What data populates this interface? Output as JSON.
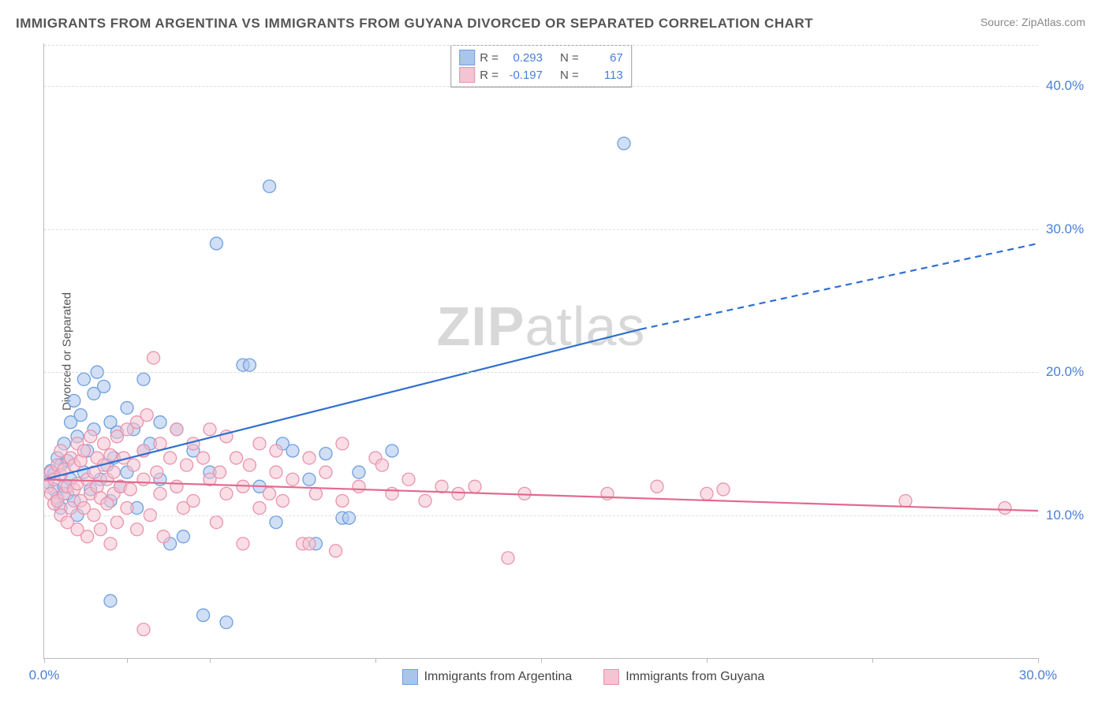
{
  "title": "IMMIGRANTS FROM ARGENTINA VS IMMIGRANTS FROM GUYANA DIVORCED OR SEPARATED CORRELATION CHART",
  "source": "Source: ZipAtlas.com",
  "ylabel": "Divorced or Separated",
  "watermark_bold": "ZIP",
  "watermark_rest": "atlas",
  "chart": {
    "type": "scatter",
    "xlim": [
      0,
      30
    ],
    "ylim": [
      0,
      43
    ],
    "xtick_labels": [
      "0.0%",
      "30.0%"
    ],
    "xtick_positions": [
      0,
      30
    ],
    "xtick_minor": [
      2.5,
      5,
      10,
      15,
      20,
      25
    ],
    "ytick_labels": [
      "10.0%",
      "20.0%",
      "30.0%",
      "40.0%"
    ],
    "ytick_positions": [
      10,
      20,
      30,
      40
    ],
    "grid_color": "#dddddd",
    "axis_color": "#bbbbbb",
    "background_color": "#ffffff",
    "marker_radius": 8,
    "marker_opacity": 0.55,
    "trend_line_width": 2.2
  },
  "series": [
    {
      "name": "Immigrants from Argentina",
      "fill": "#a9c5ec",
      "stroke": "#6f9fde",
      "line_color": "#2e6fd1",
      "r_value": "0.293",
      "n_value": "67",
      "trend": {
        "x1": 0,
        "y1": 12.5,
        "x2_solid": 18,
        "y2_solid": 23,
        "x2": 30,
        "y2": 29
      },
      "points": [
        [
          0.1,
          12.3
        ],
        [
          0.2,
          13.1
        ],
        [
          0.3,
          11.8
        ],
        [
          0.3,
          12.9
        ],
        [
          0.4,
          14.0
        ],
        [
          0.4,
          11.2
        ],
        [
          0.5,
          13.5
        ],
        [
          0.5,
          10.5
        ],
        [
          0.6,
          15.0
        ],
        [
          0.6,
          12.0
        ],
        [
          0.7,
          11.5
        ],
        [
          0.7,
          13.8
        ],
        [
          0.8,
          16.5
        ],
        [
          0.8,
          12.5
        ],
        [
          0.9,
          18.0
        ],
        [
          0.9,
          11.0
        ],
        [
          1.0,
          10.0
        ],
        [
          1.0,
          15.5
        ],
        [
          1.1,
          17.0
        ],
        [
          1.2,
          19.5
        ],
        [
          1.2,
          13.0
        ],
        [
          1.3,
          14.5
        ],
        [
          1.4,
          11.8
        ],
        [
          1.5,
          18.5
        ],
        [
          1.5,
          16.0
        ],
        [
          1.6,
          20.0
        ],
        [
          1.7,
          12.5
        ],
        [
          1.8,
          19.0
        ],
        [
          1.9,
          13.5
        ],
        [
          2.0,
          11.0
        ],
        [
          2.0,
          16.5
        ],
        [
          2.1,
          14.0
        ],
        [
          2.2,
          15.8
        ],
        [
          2.3,
          12.0
        ],
        [
          2.5,
          17.5
        ],
        [
          2.5,
          13.0
        ],
        [
          2.7,
          16.0
        ],
        [
          2.8,
          10.5
        ],
        [
          3.0,
          14.5
        ],
        [
          3.0,
          19.5
        ],
        [
          3.2,
          15.0
        ],
        [
          3.5,
          16.5
        ],
        [
          3.5,
          12.5
        ],
        [
          3.8,
          8.0
        ],
        [
          4.0,
          16.0
        ],
        [
          4.2,
          8.5
        ],
        [
          4.5,
          14.5
        ],
        [
          4.8,
          3.0
        ],
        [
          5.0,
          13.0
        ],
        [
          5.2,
          29.0
        ],
        [
          5.5,
          2.5
        ],
        [
          6.0,
          20.5
        ],
        [
          6.2,
          20.5
        ],
        [
          6.5,
          12.0
        ],
        [
          6.8,
          33.0
        ],
        [
          7.0,
          9.5
        ],
        [
          7.2,
          15.0
        ],
        [
          7.5,
          14.5
        ],
        [
          8.0,
          12.5
        ],
        [
          8.2,
          8.0
        ],
        [
          8.5,
          14.3
        ],
        [
          9.0,
          9.8
        ],
        [
          9.2,
          9.8
        ],
        [
          9.5,
          13.0
        ],
        [
          10.5,
          14.5
        ],
        [
          17.5,
          36.0
        ],
        [
          2.0,
          4.0
        ]
      ]
    },
    {
      "name": "Immigrants from Guyana",
      "fill": "#f5c3d1",
      "stroke": "#e993ad",
      "line_color": "#e26a8f",
      "r_value": "-0.197",
      "n_value": "113",
      "trend": {
        "x1": 0,
        "y1": 12.5,
        "x2_solid": 30,
        "y2_solid": 10.3,
        "x2": 30,
        "y2": 10.3
      },
      "points": [
        [
          0.1,
          12.0
        ],
        [
          0.2,
          11.5
        ],
        [
          0.2,
          13.0
        ],
        [
          0.3,
          10.8
        ],
        [
          0.3,
          12.5
        ],
        [
          0.4,
          11.0
        ],
        [
          0.4,
          13.5
        ],
        [
          0.5,
          14.5
        ],
        [
          0.5,
          10.0
        ],
        [
          0.5,
          12.8
        ],
        [
          0.6,
          11.5
        ],
        [
          0.6,
          13.2
        ],
        [
          0.7,
          9.5
        ],
        [
          0.7,
          12.0
        ],
        [
          0.8,
          14.0
        ],
        [
          0.8,
          10.5
        ],
        [
          0.9,
          11.8
        ],
        [
          0.9,
          13.5
        ],
        [
          1.0,
          15.0
        ],
        [
          1.0,
          9.0
        ],
        [
          1.0,
          12.2
        ],
        [
          1.1,
          11.0
        ],
        [
          1.1,
          13.8
        ],
        [
          1.2,
          10.5
        ],
        [
          1.2,
          14.5
        ],
        [
          1.3,
          12.5
        ],
        [
          1.3,
          8.5
        ],
        [
          1.4,
          11.5
        ],
        [
          1.4,
          15.5
        ],
        [
          1.5,
          13.0
        ],
        [
          1.5,
          10.0
        ],
        [
          1.6,
          12.0
        ],
        [
          1.6,
          14.0
        ],
        [
          1.7,
          11.2
        ],
        [
          1.7,
          9.0
        ],
        [
          1.8,
          13.5
        ],
        [
          1.8,
          15.0
        ],
        [
          1.9,
          10.8
        ],
        [
          1.9,
          12.5
        ],
        [
          2.0,
          14.2
        ],
        [
          2.0,
          8.0
        ],
        [
          2.1,
          11.5
        ],
        [
          2.1,
          13.0
        ],
        [
          2.2,
          15.5
        ],
        [
          2.2,
          9.5
        ],
        [
          2.3,
          12.0
        ],
        [
          2.4,
          14.0
        ],
        [
          2.5,
          10.5
        ],
        [
          2.5,
          16.0
        ],
        [
          2.6,
          11.8
        ],
        [
          2.7,
          13.5
        ],
        [
          2.8,
          16.5
        ],
        [
          2.8,
          9.0
        ],
        [
          3.0,
          12.5
        ],
        [
          3.0,
          14.5
        ],
        [
          3.1,
          17.0
        ],
        [
          3.2,
          10.0
        ],
        [
          3.3,
          21.0
        ],
        [
          3.4,
          13.0
        ],
        [
          3.5,
          15.0
        ],
        [
          3.5,
          11.5
        ],
        [
          3.6,
          8.5
        ],
        [
          3.8,
          14.0
        ],
        [
          4.0,
          12.0
        ],
        [
          4.0,
          16.0
        ],
        [
          4.2,
          10.5
        ],
        [
          4.3,
          13.5
        ],
        [
          4.5,
          15.0
        ],
        [
          4.5,
          11.0
        ],
        [
          4.8,
          14.0
        ],
        [
          5.0,
          12.5
        ],
        [
          5.0,
          16.0
        ],
        [
          5.2,
          9.5
        ],
        [
          5.3,
          13.0
        ],
        [
          5.5,
          15.5
        ],
        [
          5.5,
          11.5
        ],
        [
          5.8,
          14.0
        ],
        [
          6.0,
          12.0
        ],
        [
          6.0,
          8.0
        ],
        [
          6.2,
          13.5
        ],
        [
          6.5,
          15.0
        ],
        [
          6.5,
          10.5
        ],
        [
          6.8,
          11.5
        ],
        [
          7.0,
          14.5
        ],
        [
          7.0,
          13.0
        ],
        [
          7.2,
          11.0
        ],
        [
          7.5,
          12.5
        ],
        [
          7.8,
          8.0
        ],
        [
          8.0,
          14.0
        ],
        [
          8.0,
          8.0
        ],
        [
          8.2,
          11.5
        ],
        [
          8.5,
          13.0
        ],
        [
          8.8,
          7.5
        ],
        [
          9.0,
          15.0
        ],
        [
          9.0,
          11.0
        ],
        [
          9.5,
          12.0
        ],
        [
          10.0,
          14.0
        ],
        [
          10.2,
          13.5
        ],
        [
          10.5,
          11.5
        ],
        [
          11.0,
          12.5
        ],
        [
          11.5,
          11.0
        ],
        [
          12.0,
          12.0
        ],
        [
          12.5,
          11.5
        ],
        [
          13.0,
          12.0
        ],
        [
          14.0,
          7.0
        ],
        [
          14.5,
          11.5
        ],
        [
          17.0,
          11.5
        ],
        [
          18.5,
          12.0
        ],
        [
          20.0,
          11.5
        ],
        [
          20.5,
          11.8
        ],
        [
          26.0,
          11.0
        ],
        [
          29.0,
          10.5
        ],
        [
          3.0,
          2.0
        ]
      ]
    }
  ],
  "legend_top_labels": {
    "r": "R =",
    "n": "N ="
  },
  "bottom_legend_label_a": "Immigrants from Argentina",
  "bottom_legend_label_b": "Immigrants from Guyana"
}
